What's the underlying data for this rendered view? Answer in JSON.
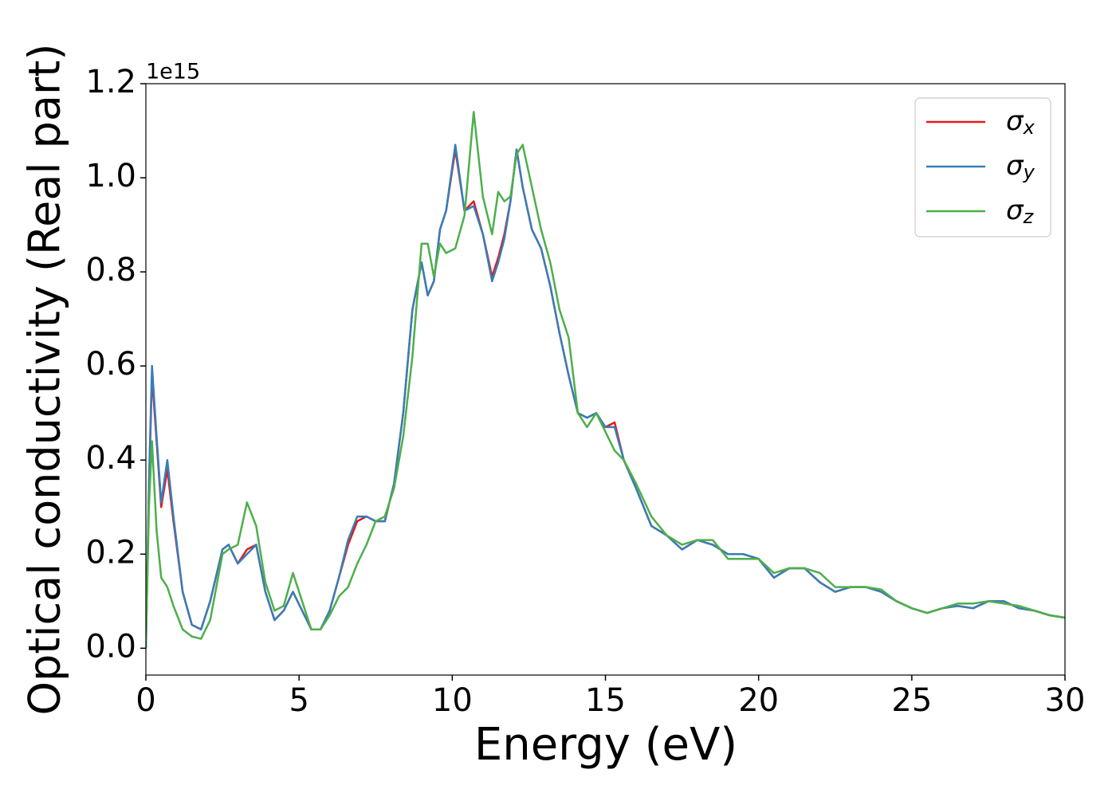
{
  "chart_data": {
    "type": "line",
    "xlabel": "Energy (eV)",
    "ylabel": "Optical conductivity (Real part)",
    "y_offset_label": "1e15",
    "xlim": [
      0,
      30
    ],
    "xticks": [
      0,
      5,
      10,
      15,
      20,
      25,
      30
    ],
    "ylim": [
      -0.057,
      1.2
    ],
    "yticks": [
      {
        "value": 0,
        "label": "0.0"
      },
      0.2,
      0.4,
      0.6,
      0.8,
      {
        "value": 1,
        "label": "1.0"
      },
      1.2
    ],
    "legend": "upper right",
    "x": [
      0,
      0.1,
      0.2,
      0.35,
      0.5,
      0.7,
      0.9,
      1.2,
      1.5,
      1.8,
      2.1,
      2.5,
      2.7,
      3.0,
      3.3,
      3.6,
      3.9,
      4.2,
      4.5,
      4.8,
      5.1,
      5.4,
      5.7,
      6.0,
      6.3,
      6.6,
      6.9,
      7.2,
      7.5,
      7.8,
      8.1,
      8.4,
      8.7,
      9.0,
      9.2,
      9.4,
      9.6,
      9.8,
      10.1,
      10.4,
      10.7,
      11.0,
      11.3,
      11.5,
      11.7,
      11.9,
      12.1,
      12.3,
      12.6,
      12.9,
      13.2,
      13.5,
      13.8,
      14.1,
      14.4,
      14.7,
      15.0,
      15.3,
      15.6,
      16.0,
      16.5,
      17.0,
      17.5,
      18.0,
      18.5,
      19.0,
      19.5,
      20.0,
      20.5,
      21.0,
      21.5,
      22.0,
      22.5,
      23.0,
      23.5,
      24.0,
      24.5,
      25.0,
      25.5,
      26.0,
      26.5,
      27.0,
      27.5,
      28.0,
      28.5,
      29.0,
      29.5,
      30.0
    ],
    "series": [
      {
        "name": "σx",
        "color": "#e41a1c",
        "values": [
          0.0,
          0.34,
          0.58,
          0.44,
          0.3,
          0.38,
          0.27,
          0.12,
          0.05,
          0.04,
          0.1,
          0.21,
          0.22,
          0.18,
          0.21,
          0.22,
          0.12,
          0.06,
          0.08,
          0.12,
          0.08,
          0.04,
          0.04,
          0.08,
          0.15,
          0.22,
          0.27,
          0.28,
          0.27,
          0.27,
          0.35,
          0.5,
          0.72,
          0.82,
          0.75,
          0.78,
          0.89,
          0.93,
          1.06,
          0.93,
          0.95,
          0.88,
          0.79,
          0.83,
          0.88,
          0.95,
          1.06,
          0.98,
          0.89,
          0.85,
          0.77,
          0.67,
          0.58,
          0.5,
          0.49,
          0.5,
          0.47,
          0.48,
          0.4,
          0.34,
          0.26,
          0.24,
          0.21,
          0.23,
          0.22,
          0.2,
          0.2,
          0.19,
          0.15,
          0.17,
          0.17,
          0.14,
          0.12,
          0.13,
          0.13,
          0.12,
          0.1,
          0.085,
          0.075,
          0.085,
          0.09,
          0.085,
          0.1,
          0.1,
          0.085,
          0.08,
          0.07,
          0.065
        ]
      },
      {
        "name": "σy",
        "color": "#377eb8",
        "values": [
          0.0,
          0.35,
          0.6,
          0.45,
          0.31,
          0.4,
          0.28,
          0.12,
          0.05,
          0.04,
          0.1,
          0.21,
          0.22,
          0.18,
          0.2,
          0.22,
          0.12,
          0.06,
          0.08,
          0.12,
          0.08,
          0.04,
          0.04,
          0.08,
          0.15,
          0.23,
          0.28,
          0.28,
          0.27,
          0.27,
          0.35,
          0.5,
          0.72,
          0.82,
          0.75,
          0.78,
          0.89,
          0.93,
          1.07,
          0.93,
          0.94,
          0.88,
          0.78,
          0.82,
          0.87,
          0.95,
          1.06,
          0.98,
          0.89,
          0.85,
          0.77,
          0.67,
          0.58,
          0.5,
          0.49,
          0.5,
          0.47,
          0.47,
          0.4,
          0.34,
          0.26,
          0.24,
          0.21,
          0.23,
          0.22,
          0.2,
          0.2,
          0.19,
          0.15,
          0.17,
          0.17,
          0.14,
          0.12,
          0.13,
          0.13,
          0.12,
          0.1,
          0.085,
          0.075,
          0.085,
          0.09,
          0.085,
          0.1,
          0.1,
          0.085,
          0.08,
          0.07,
          0.065
        ]
      },
      {
        "name": "σz",
        "color": "#4daf4a",
        "values": [
          0.0,
          0.3,
          0.44,
          0.25,
          0.15,
          0.13,
          0.09,
          0.04,
          0.025,
          0.02,
          0.06,
          0.2,
          0.21,
          0.22,
          0.31,
          0.26,
          0.14,
          0.08,
          0.09,
          0.16,
          0.1,
          0.04,
          0.04,
          0.07,
          0.11,
          0.13,
          0.18,
          0.22,
          0.27,
          0.28,
          0.34,
          0.45,
          0.62,
          0.86,
          0.86,
          0.79,
          0.86,
          0.84,
          0.85,
          0.92,
          1.14,
          0.96,
          0.88,
          0.97,
          0.95,
          0.96,
          1.05,
          1.07,
          0.98,
          0.89,
          0.82,
          0.72,
          0.66,
          0.5,
          0.47,
          0.5,
          0.46,
          0.42,
          0.4,
          0.35,
          0.28,
          0.24,
          0.22,
          0.23,
          0.23,
          0.19,
          0.19,
          0.19,
          0.16,
          0.17,
          0.17,
          0.16,
          0.13,
          0.13,
          0.13,
          0.125,
          0.1,
          0.085,
          0.075,
          0.085,
          0.095,
          0.095,
          0.1,
          0.095,
          0.09,
          0.08,
          0.07,
          0.065
        ]
      }
    ]
  }
}
